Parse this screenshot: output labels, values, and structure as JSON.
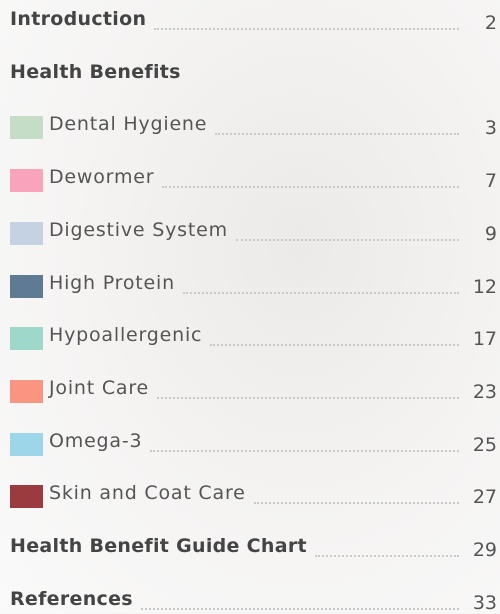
{
  "entries": [
    {
      "title": "Introduction",
      "page": 2
    },
    {
      "title": "Health Benefits"
    },
    {
      "title": "Dental Hygiene",
      "page": 3,
      "color": "#c5dcc6"
    },
    {
      "title": "Dewormer",
      "page": 7,
      "color": "#f9a3bc"
    },
    {
      "title": "Digestive System",
      "page": 9,
      "color": "#c5d2e4"
    },
    {
      "title": "High Protein",
      "page": 12,
      "color": "#5f7b94"
    },
    {
      "title": "Hypoallergenic",
      "page": 17,
      "color": "#9dd8cb"
    },
    {
      "title": "Joint Care",
      "page": 23,
      "color": "#f99581"
    },
    {
      "title": "Omega-3",
      "page": 25,
      "color": "#9cd6e8"
    },
    {
      "title": "Skin and Coat Care",
      "page": 27,
      "color": "#9b3a3f"
    },
    {
      "title": "Health Benefit Guide Chart",
      "page": 29
    },
    {
      "title": "References",
      "page": 33
    }
  ]
}
